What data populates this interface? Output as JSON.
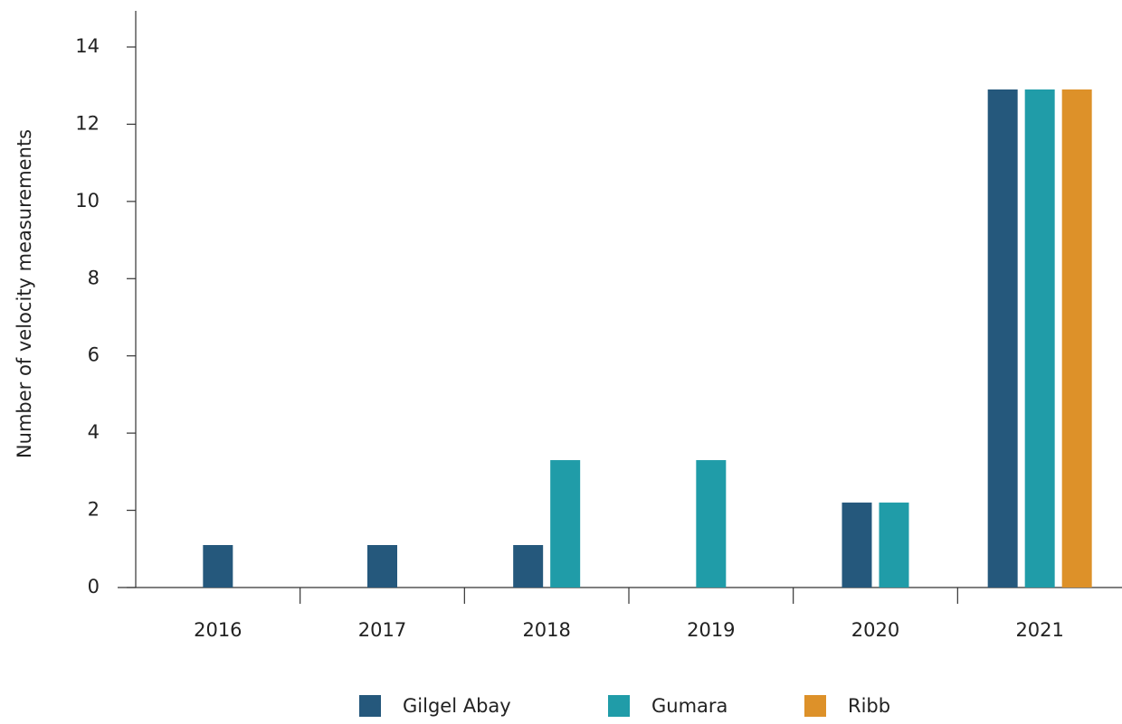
{
  "chart_data": {
    "type": "bar",
    "y_label": "Number of velocity measurements",
    "categories": [
      "2016",
      "2017",
      "2018",
      "2019",
      "2020",
      "2021"
    ],
    "series": [
      {
        "name": "Gilgel Abay",
        "color": "#25587c",
        "values": [
          1.1,
          1.1,
          1.1,
          null,
          2.2,
          12.9
        ]
      },
      {
        "name": "Gumara",
        "color": "#209ca8",
        "values": [
          null,
          null,
          3.3,
          3.3,
          2.2,
          12.9
        ]
      },
      {
        "name": "Ribb",
        "color": "#dd9129",
        "values": [
          null,
          null,
          null,
          null,
          null,
          12.9
        ]
      }
    ],
    "ylim": [
      0,
      14
    ],
    "yticks": [
      0,
      2,
      4,
      6,
      8,
      10,
      12,
      14
    ],
    "grid": false,
    "legend": "bottom"
  }
}
